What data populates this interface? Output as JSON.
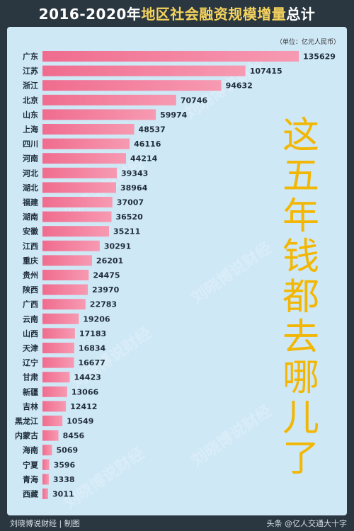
{
  "header": {
    "title_prefix": "2016-2020年",
    "title_highlight": "地区社会融资规模增量",
    "title_suffix": "总计"
  },
  "unit_label": "（单位：亿元人民币）",
  "side_text": [
    "这",
    "五",
    "年",
    "钱",
    "都",
    "去",
    "哪",
    "儿",
    "了"
  ],
  "watermark": "刘晓博说财经",
  "footer": {
    "left": "刘晓博说财经 | 制图",
    "right": "头条 @亿人交通大十字"
  },
  "colors": {
    "bar": "#f06c8e",
    "bar_light": "#f79ab2",
    "side_text": "#f2b705",
    "title_highlight": "#f4d35e"
  },
  "chart_data": {
    "type": "bar",
    "orientation": "horizontal",
    "categories": [
      "广东",
      "江苏",
      "浙江",
      "北京",
      "山东",
      "上海",
      "四川",
      "河南",
      "河北",
      "湖北",
      "福建",
      "湖南",
      "安徽",
      "江西",
      "重庆",
      "贵州",
      "陕西",
      "广西",
      "云南",
      "山西",
      "天津",
      "辽宁",
      "甘肃",
      "新疆",
      "吉林",
      "黑龙江",
      "内蒙古",
      "海南",
      "宁夏",
      "青海",
      "西藏"
    ],
    "values": [
      135629,
      107415,
      94632,
      70746,
      59974,
      48537,
      46116,
      44214,
      39343,
      38964,
      37007,
      36520,
      35211,
      30291,
      26201,
      24475,
      23970,
      22783,
      19206,
      17183,
      16834,
      16677,
      14423,
      13066,
      12412,
      10549,
      8456,
      5069,
      3596,
      3338,
      3011
    ],
    "title": "2016-2020年地区社会融资规模增量总计",
    "xlim": [
      0,
      135629
    ]
  }
}
